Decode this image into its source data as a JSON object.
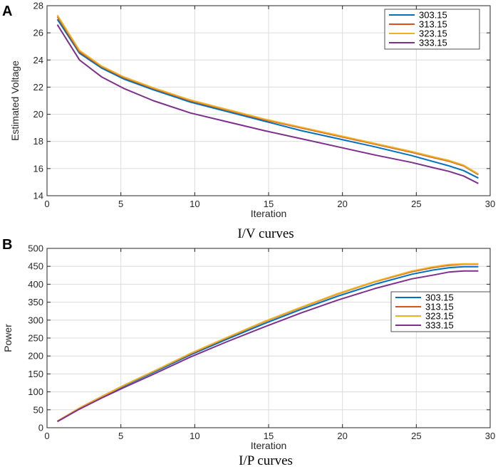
{
  "panels": {
    "a": {
      "letter": "A",
      "caption": "I/V curves"
    },
    "b": {
      "letter": "B",
      "caption": "I/P curves"
    }
  },
  "colors": {
    "s303": "#0072BD",
    "s313": "#D95319",
    "s323": "#EDB120",
    "s333": "#7E2F8E",
    "grid": "#dcdcdc",
    "axis": "#262626"
  },
  "chart_data": [
    {
      "type": "line",
      "title": "",
      "xlabel": "Iteration",
      "ylabel": "Estimated Voltage",
      "xlim": [
        0,
        30
      ],
      "ylim": [
        14,
        28
      ],
      "xticks": [
        0,
        5,
        10,
        15,
        20,
        25,
        30
      ],
      "yticks": [
        14,
        16,
        18,
        20,
        22,
        24,
        26,
        28
      ],
      "grid": true,
      "legend_position": "top-right",
      "x": [
        0.7,
        2.2,
        3.7,
        5.2,
        7.2,
        9.7,
        12.2,
        14.7,
        17.2,
        19.7,
        22.2,
        24.7,
        26.2,
        27.2,
        28.2,
        29.2
      ],
      "series": [
        {
          "name": "303.15",
          "color": "#0072BD",
          "values": [
            27.0,
            24.5,
            23.4,
            22.6,
            21.8,
            20.9,
            20.2,
            19.5,
            18.8,
            18.2,
            17.6,
            16.95,
            16.5,
            16.2,
            15.85,
            15.3
          ]
        },
        {
          "name": "313.15",
          "color": "#D95319",
          "values": [
            27.2,
            24.6,
            23.5,
            22.7,
            21.9,
            21.0,
            20.3,
            19.6,
            19.0,
            18.4,
            17.8,
            17.2,
            16.8,
            16.55,
            16.2,
            15.55
          ]
        },
        {
          "name": "323.15",
          "color": "#EDB120",
          "values": [
            27.3,
            24.7,
            23.55,
            22.75,
            21.95,
            21.05,
            20.35,
            19.65,
            19.05,
            18.45,
            17.85,
            17.25,
            16.85,
            16.6,
            16.25,
            15.6
          ]
        },
        {
          "name": "333.15",
          "color": "#7E2F8E",
          "values": [
            26.6,
            24.0,
            22.75,
            21.9,
            21.0,
            20.1,
            19.45,
            18.8,
            18.2,
            17.6,
            17.0,
            16.45,
            16.05,
            15.8,
            15.45,
            14.9
          ]
        }
      ]
    },
    {
      "type": "line",
      "title": "",
      "xlabel": "Iteration",
      "ylabel": "Power",
      "xlim": [
        0,
        30
      ],
      "ylim": [
        0,
        500
      ],
      "xticks": [
        0,
        5,
        10,
        15,
        20,
        25,
        30
      ],
      "yticks": [
        0,
        50,
        100,
        150,
        200,
        250,
        300,
        350,
        400,
        450,
        500
      ],
      "grid": true,
      "legend_position": "right",
      "x": [
        0.7,
        2.2,
        3.7,
        5.2,
        7.2,
        9.7,
        12.2,
        14.7,
        17.2,
        19.7,
        22.2,
        24.7,
        26.2,
        27.2,
        28.2,
        29.2
      ],
      "series": [
        {
          "name": "303.15",
          "color": "#0072BD",
          "values": [
            18,
            54,
            86,
            116,
            154,
            203,
            247,
            290,
            330,
            367,
            400,
            428,
            440,
            446,
            449,
            449
          ]
        },
        {
          "name": "313.15",
          "color": "#D95319",
          "values": [
            18,
            55,
            87,
            118,
            157,
            206,
            251,
            295,
            335,
            373,
            407,
            435,
            447,
            453,
            456,
            456
          ]
        },
        {
          "name": "323.15",
          "color": "#EDB120",
          "values": [
            18,
            55,
            87,
            118,
            157,
            207,
            252,
            296,
            336,
            374,
            408,
            437,
            449,
            455,
            457,
            457
          ]
        },
        {
          "name": "333.15",
          "color": "#7E2F8E",
          "values": [
            17,
            52,
            83,
            112,
            149,
            197,
            240,
            281,
            320,
            356,
            388,
            415,
            426,
            434,
            437,
            437
          ]
        }
      ]
    }
  ]
}
